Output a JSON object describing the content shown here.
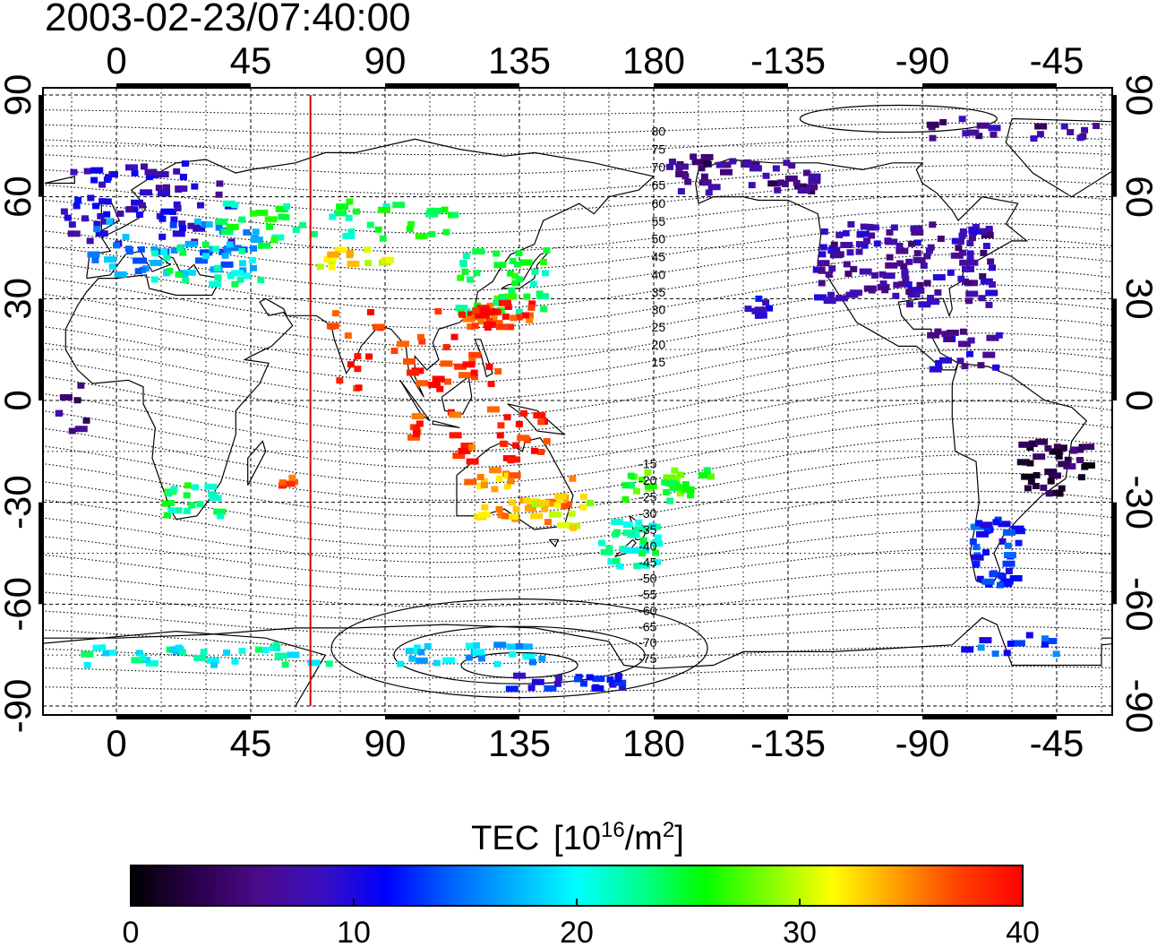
{
  "timestamp": "2003-02-23/07:40:00",
  "x_ticks": [
    "0",
    "45",
    "90",
    "135",
    "180",
    "-135",
    "-90",
    "-45"
  ],
  "y_ticks": [
    "90",
    "60",
    "30",
    "0",
    "-30",
    "-60",
    "-90"
  ],
  "contour_labels_north": [
    "80",
    "75",
    "70",
    "65",
    "60",
    "55",
    "50",
    "45",
    "40",
    "35",
    "30",
    "25",
    "20",
    "15"
  ],
  "contour_labels_south": [
    "-15",
    "-20",
    "-25",
    "-30",
    "-35",
    "-40",
    "-45",
    "-50",
    "-55",
    "-60",
    "-65",
    "-70",
    "-75"
  ],
  "colorbar": {
    "title_main": "TEC",
    "title_unit_base": "[10",
    "title_unit_exp": "16",
    "title_unit_mid": "/m",
    "title_unit_exp2": "2",
    "title_unit_end": "]",
    "min": 0,
    "max": 40,
    "tick_labels": [
      "0",
      "10",
      "20",
      "30",
      "40"
    ],
    "colors": [
      "#000000",
      "#2a004a",
      "#4b0a8a",
      "#3a10c0",
      "#0000ff",
      "#0060ff",
      "#00b0ff",
      "#00ffff",
      "#00ff90",
      "#00ff00",
      "#80ff00",
      "#ffff00",
      "#ffa000",
      "#ff4000",
      "#ff0000"
    ]
  },
  "terminator_longitude": 65,
  "clusters": [
    {
      "lon": 10,
      "lat": 58,
      "tec": 9,
      "spread": [
        30,
        12
      ],
      "n": 70
    },
    {
      "lon": 20,
      "lat": 45,
      "tec": 16,
      "spread": [
        28,
        8
      ],
      "n": 55
    },
    {
      "lon": 30,
      "lat": 40,
      "tec": 22,
      "spread": [
        20,
        6
      ],
      "n": 25
    },
    {
      "lon": 75,
      "lat": 53,
      "tec": 24,
      "spread": [
        40,
        6
      ],
      "n": 45
    },
    {
      "lon": 80,
      "lat": 42,
      "tec": 32,
      "spread": [
        12,
        3
      ],
      "n": 15
    },
    {
      "lon": 130,
      "lat": 35,
      "tec": 24,
      "spread": [
        15,
        10
      ],
      "n": 40
    },
    {
      "lon": 128,
      "lat": 25,
      "tec": 38,
      "spread": [
        12,
        4
      ],
      "n": 30
    },
    {
      "lon": 100,
      "lat": 15,
      "tec": 39,
      "spread": [
        30,
        12
      ],
      "n": 45
    },
    {
      "lon": 120,
      "lat": -10,
      "tec": 38,
      "spread": [
        25,
        8
      ],
      "n": 35
    },
    {
      "lon": 135,
      "lat": -28,
      "tec": 34,
      "spread": [
        18,
        8
      ],
      "n": 40
    },
    {
      "lon": 150,
      "lat": -33,
      "tec": 31,
      "spread": [
        10,
        5
      ],
      "n": 12
    },
    {
      "lon": 172,
      "lat": -42,
      "tec": 22,
      "spread": [
        10,
        7
      ],
      "n": 30
    },
    {
      "lon": 185,
      "lat": -25,
      "tec": 26,
      "spread": [
        15,
        5
      ],
      "n": 30
    },
    {
      "lon": 25,
      "lat": -30,
      "tec": 24,
      "spread": [
        10,
        5
      ],
      "n": 20
    },
    {
      "lon": 55,
      "lat": -25,
      "tec": 37,
      "spread": [
        6,
        3
      ],
      "n": 5
    },
    {
      "lon": 30,
      "lat": -75,
      "tec": 21,
      "spread": [
        45,
        3
      ],
      "n": 35
    },
    {
      "lon": 120,
      "lat": -75,
      "tec": 18,
      "spread": [
        25,
        3
      ],
      "n": 25
    },
    {
      "lon": 150,
      "lat": -83,
      "tec": 11,
      "spread": [
        20,
        2
      ],
      "n": 20
    },
    {
      "lon": 210,
      "lat": 66,
      "tec": 5,
      "spread": [
        25,
        6
      ],
      "n": 45
    },
    {
      "lon": 265,
      "lat": 40,
      "tec": 7,
      "spread": [
        30,
        12
      ],
      "n": 130
    },
    {
      "lon": 285,
      "lat": 15,
      "tec": 8,
      "spread": [
        12,
        6
      ],
      "n": 20
    },
    {
      "lon": 315,
      "lat": -20,
      "tec": 3,
      "spread": [
        12,
        8
      ],
      "n": 40
    },
    {
      "lon": 295,
      "lat": -45,
      "tec": 12,
      "spread": [
        8,
        10
      ],
      "n": 40
    },
    {
      "lon": 300,
      "lat": -72,
      "tec": 13,
      "spread": [
        15,
        3
      ],
      "n": 12
    },
    {
      "lon": 215,
      "lat": 27,
      "tec": 10,
      "spread": [
        4,
        3
      ],
      "n": 8
    },
    {
      "lon": 300,
      "lat": 80,
      "tec": 6,
      "spread": [
        30,
        3
      ],
      "n": 20
    },
    {
      "lon": -15,
      "lat": 0,
      "tec": 5,
      "spread": [
        5,
        10
      ],
      "n": 8
    }
  ]
}
